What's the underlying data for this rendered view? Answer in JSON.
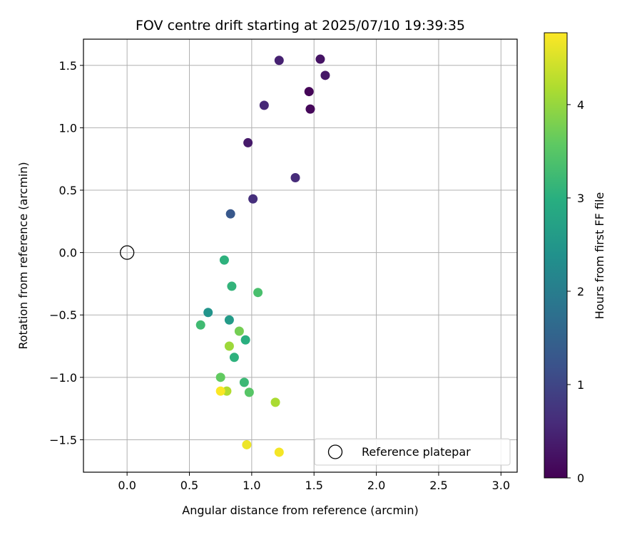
{
  "chart_data": {
    "type": "scatter",
    "title": "FOV centre drift starting at 2025/07/10 19:39:35",
    "xlabel": "Angular distance from reference (arcmin)",
    "ylabel": "Rotation from reference (arcmin)",
    "xlim": [
      -0.35,
      3.13
    ],
    "ylim": [
      -1.76,
      1.71
    ],
    "xticks": [
      0.0,
      0.5,
      1.0,
      1.5,
      2.0,
      2.5,
      3.0
    ],
    "xtick_labels": [
      "0.0",
      "0.5",
      "1.0",
      "1.5",
      "2.0",
      "2.5",
      "3.0"
    ],
    "yticks": [
      -1.5,
      -1.0,
      -0.5,
      0.0,
      0.5,
      1.0,
      1.5
    ],
    "ytick_labels": [
      "−1.5",
      "−1.0",
      "−0.5",
      "0.0",
      "0.5",
      "1.0",
      "1.5"
    ],
    "grid": true,
    "colormap": "viridis",
    "colorbar": {
      "label": "Hours from first FF file",
      "range": [
        0,
        4.77
      ],
      "ticks": [
        0,
        1,
        2,
        3,
        4
      ],
      "tick_labels": [
        "0",
        "1",
        "2",
        "3",
        "4"
      ]
    },
    "legend": {
      "position": "lower right",
      "entries": [
        {
          "label": "Reference platepar",
          "marker": "open-circle"
        }
      ]
    },
    "reference_point": {
      "x": 0.0,
      "y": 0.0
    },
    "points": [
      {
        "x": 1.46,
        "y": 1.29,
        "hours": 0.05
      },
      {
        "x": 1.47,
        "y": 1.15,
        "hours": 0.1
      },
      {
        "x": 1.55,
        "y": 1.55,
        "hours": 0.25
      },
      {
        "x": 1.59,
        "y": 1.42,
        "hours": 0.3
      },
      {
        "x": 0.97,
        "y": 0.88,
        "hours": 0.35
      },
      {
        "x": 1.22,
        "y": 1.54,
        "hours": 0.45
      },
      {
        "x": 1.1,
        "y": 1.18,
        "hours": 0.55
      },
      {
        "x": 1.35,
        "y": 0.6,
        "hours": 0.6
      },
      {
        "x": 1.01,
        "y": 0.43,
        "hours": 0.65
      },
      {
        "x": 0.83,
        "y": 0.31,
        "hours": 1.3
      },
      {
        "x": 0.65,
        "y": -0.48,
        "hours": 2.45
      },
      {
        "x": 0.82,
        "y": -0.54,
        "hours": 2.6
      },
      {
        "x": 0.78,
        "y": -0.06,
        "hours": 3.05
      },
      {
        "x": 0.84,
        "y": -0.27,
        "hours": 3.1
      },
      {
        "x": 0.95,
        "y": -0.7,
        "hours": 3.0
      },
      {
        "x": 0.86,
        "y": -0.84,
        "hours": 3.05
      },
      {
        "x": 0.94,
        "y": -1.04,
        "hours": 3.2
      },
      {
        "x": 0.59,
        "y": -0.58,
        "hours": 3.25
      },
      {
        "x": 1.05,
        "y": -0.32,
        "hours": 3.35
      },
      {
        "x": 0.98,
        "y": -1.12,
        "hours": 3.5
      },
      {
        "x": 0.75,
        "y": -1.0,
        "hours": 3.6
      },
      {
        "x": 0.9,
        "y": -0.63,
        "hours": 3.75
      },
      {
        "x": 0.82,
        "y": -0.75,
        "hours": 4.05
      },
      {
        "x": 1.19,
        "y": -1.2,
        "hours": 4.15
      },
      {
        "x": 0.8,
        "y": -1.11,
        "hours": 4.2
      },
      {
        "x": 0.96,
        "y": -1.54,
        "hours": 4.65
      },
      {
        "x": 1.22,
        "y": -1.6,
        "hours": 4.7
      },
      {
        "x": 0.75,
        "y": -1.11,
        "hours": 4.75
      }
    ]
  }
}
